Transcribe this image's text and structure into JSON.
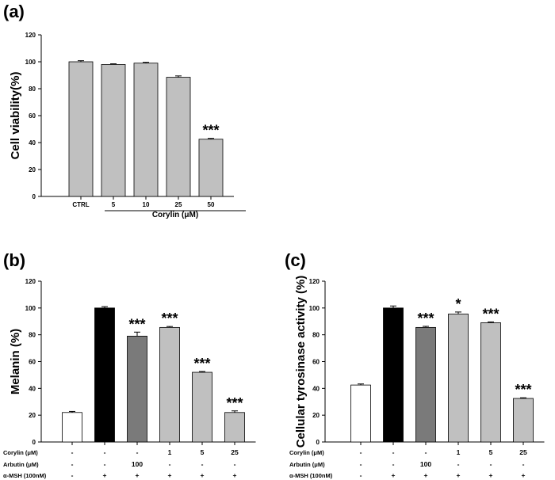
{
  "chart_data": [
    {
      "panel": "(a)",
      "type": "bar",
      "title": "",
      "ylabel": "Cell viability(%)",
      "xlabel": "Corylin (μM)",
      "ylim": [
        0,
        120
      ],
      "yticks": [
        0,
        20,
        40,
        60,
        80,
        100,
        120
      ],
      "categories": [
        "CTRL",
        "5",
        "10",
        "25",
        "50"
      ],
      "values": [
        100,
        98,
        99,
        88.5,
        42.5
      ],
      "errors": [
        0.8,
        0.5,
        0.6,
        1.0,
        0.6
      ],
      "significance": [
        "",
        "",
        "",
        "",
        "***"
      ],
      "colors": [
        "#c0c0c0",
        "#c0c0c0",
        "#c0c0c0",
        "#c0c0c0",
        "#c0c0c0"
      ],
      "xlabel_underline_from": 1
    },
    {
      "panel": "(b)",
      "type": "bar",
      "title": "",
      "ylabel": "Melanin (%)",
      "xlabel": "",
      "ylim": [
        0,
        120
      ],
      "yticks": [
        0,
        20,
        40,
        60,
        80,
        100,
        120
      ],
      "categories": [
        "",
        "",
        "",
        "",
        "",
        ""
      ],
      "values": [
        22,
        100,
        79,
        85.5,
        52,
        22
      ],
      "errors": [
        0.8,
        1.0,
        3.0,
        0.7,
        0.6,
        1.2
      ],
      "significance": [
        "",
        "",
        "***",
        "***",
        "***",
        "***"
      ],
      "colors": [
        "#ffffff",
        "#000000",
        "#7a7a7a",
        "#c0c0c0",
        "#c0c0c0",
        "#c0c0c0"
      ],
      "treatment_rows": [
        {
          "label": "Corylin (μM)",
          "cells": [
            "-",
            "-",
            "-",
            "1",
            "5",
            "25"
          ]
        },
        {
          "label": "Arbutin (μM)",
          "cells": [
            "-",
            "-",
            "100",
            "-",
            "-",
            "-"
          ]
        },
        {
          "label": "α-MSH (100nM)",
          "cells": [
            "-",
            "+",
            "+",
            "+",
            "+",
            "+"
          ]
        }
      ]
    },
    {
      "panel": "(c)",
      "type": "bar",
      "title": "",
      "ylabel": "Cellular tyrosinase activity (%)",
      "xlabel": "",
      "ylim": [
        0,
        120
      ],
      "yticks": [
        0,
        20,
        40,
        60,
        80,
        100,
        120
      ],
      "categories": [
        "",
        "",
        "",
        "",
        "",
        ""
      ],
      "values": [
        42.5,
        100,
        85.5,
        95.5,
        89,
        32.5
      ],
      "errors": [
        0.8,
        1.5,
        0.8,
        1.5,
        0.6,
        0.5
      ],
      "significance": [
        "",
        "",
        "***",
        "*",
        "***",
        "***"
      ],
      "colors": [
        "#ffffff",
        "#000000",
        "#7a7a7a",
        "#c0c0c0",
        "#c0c0c0",
        "#c0c0c0"
      ],
      "treatment_rows": [
        {
          "label": "Corylin (μM)",
          "cells": [
            "-",
            "-",
            "-",
            "1",
            "5",
            "25"
          ]
        },
        {
          "label": "Arbutin (μM)",
          "cells": [
            "-",
            "-",
            "100",
            "-",
            "-",
            "-"
          ]
        },
        {
          "label": "α-MSH (100nM)",
          "cells": [
            "-",
            "+",
            "+",
            "+",
            "+",
            "+"
          ]
        }
      ]
    }
  ]
}
